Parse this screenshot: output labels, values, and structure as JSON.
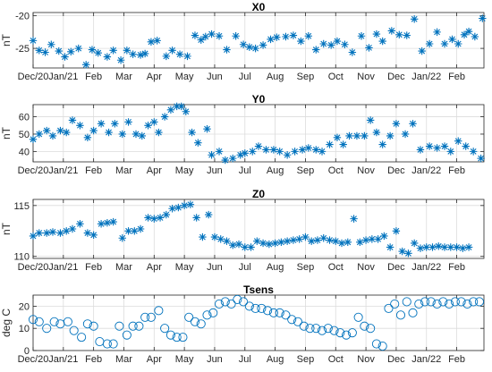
{
  "figure": {
    "x_tick_labels": [
      "Dec/20",
      "Jan/21",
      "Feb",
      "Mar",
      "Apr",
      "May",
      "Jun",
      "Jul",
      "Aug",
      "Sep",
      "Oct",
      "Nov",
      "Dec",
      "Jan/22",
      "Feb"
    ],
    "marker_color": "#0072BD"
  },
  "chart_data": [
    {
      "type": "scatter",
      "title": "X0",
      "ylabel": "nT",
      "marker": "asterisk",
      "ylim": [
        -28,
        -19.5
      ],
      "yticks": [
        -25,
        -20
      ],
      "x_unit": "months since start of Dec 2020",
      "x": [
        0.0,
        0.2,
        0.4,
        0.6,
        0.85,
        1.05,
        1.25,
        1.5,
        1.75,
        1.95,
        2.15,
        2.45,
        2.65,
        2.9,
        3.1,
        3.3,
        3.55,
        3.7,
        3.9,
        4.1,
        4.4,
        4.6,
        4.85,
        5.1,
        5.35,
        5.55,
        5.7,
        5.9,
        6.15,
        6.4,
        6.7,
        6.95,
        7.15,
        7.35,
        7.6,
        7.85,
        8.05,
        8.35,
        8.6,
        8.85,
        9.1,
        9.35,
        9.6,
        9.85,
        10.05,
        10.3,
        10.55,
        10.85,
        11.1,
        11.35,
        11.55,
        11.85,
        12.1,
        12.35,
        12.6,
        12.85,
        13.1,
        13.35,
        13.6,
        13.85,
        14.05,
        14.25,
        14.4,
        14.6,
        14.85
      ],
      "values": [
        -23.8,
        -25.3,
        -25.6,
        -24.4,
        -25.4,
        -26.3,
        -25.5,
        -25.0,
        -27.5,
        -25.2,
        -25.7,
        -26.3,
        -25.3,
        -26.8,
        -25.3,
        -25.9,
        -26.0,
        -25.8,
        -24.0,
        -23.8,
        -26.2,
        -25.3,
        -25.9,
        -26.2,
        -23.0,
        -23.7,
        -23.2,
        -22.8,
        -23.1,
        -25.2,
        -23.1,
        -24.4,
        -24.8,
        -25.0,
        -24.5,
        -23.6,
        -23.3,
        -23.2,
        -23.0,
        -23.9,
        -23.1,
        -25.2,
        -24.3,
        -24.5,
        -23.9,
        -24.4,
        -25.6,
        -23.1,
        -24.9,
        -22.8,
        -23.9,
        -22.3,
        -22.9,
        -23.0,
        -20.5,
        -25.4,
        -24.3,
        -22.5,
        -24.3,
        -23.6,
        -24.3,
        -22.9,
        -22.4,
        -23.2,
        -20.4
      ]
    },
    {
      "type": "scatter",
      "title": "Y0",
      "ylabel": "nT",
      "marker": "asterisk",
      "ylim": [
        34,
        67
      ],
      "yticks": [
        40,
        50,
        60
      ],
      "x_unit": "months since start of Dec 2020",
      "x": [
        0.0,
        0.2,
        0.45,
        0.65,
        0.9,
        1.1,
        1.3,
        1.55,
        1.8,
        2.0,
        2.25,
        2.5,
        2.7,
        2.95,
        3.15,
        3.4,
        3.6,
        3.8,
        4.0,
        4.15,
        4.35,
        4.55,
        4.75,
        4.9,
        5.05,
        5.25,
        5.45,
        5.75,
        5.9,
        6.15,
        6.35,
        6.6,
        6.85,
        7.0,
        7.25,
        7.45,
        7.7,
        7.95,
        8.15,
        8.4,
        8.65,
        8.9,
        9.1,
        9.35,
        9.55,
        9.8,
        10.05,
        10.25,
        10.45,
        10.7,
        10.95,
        11.15,
        11.35,
        11.55,
        11.8,
        12.0,
        12.3,
        12.55,
        12.8,
        13.1,
        13.35,
        13.6,
        13.8,
        14.05,
        14.3,
        14.55,
        14.8
      ],
      "values": [
        47,
        50,
        52,
        49,
        52,
        51,
        58,
        55,
        48,
        52,
        56,
        51,
        56,
        50,
        57,
        50,
        49,
        55,
        57,
        51,
        60,
        64,
        66,
        66,
        63,
        51,
        45,
        53,
        38,
        40,
        35,
        36,
        38,
        39,
        40,
        43,
        41,
        41,
        40,
        38,
        40,
        41,
        42,
        41,
        40,
        44,
        48,
        44,
        49,
        49,
        49,
        58,
        51,
        44,
        49,
        56,
        50,
        56,
        41,
        43,
        42,
        43,
        40,
        46,
        43,
        40,
        36
      ]
    },
    {
      "type": "scatter",
      "title": "Z0",
      "ylabel": "nT",
      "marker": "asterisk",
      "ylim": [
        109.8,
        115.6
      ],
      "yticks": [
        110,
        115
      ],
      "x_unit": "months since start of Dec 2020",
      "x": [
        0.0,
        0.2,
        0.45,
        0.65,
        0.9,
        1.1,
        1.3,
        1.55,
        1.8,
        2.0,
        2.25,
        2.45,
        2.65,
        2.95,
        3.15,
        3.35,
        3.55,
        3.8,
        4.0,
        4.2,
        4.4,
        4.6,
        4.8,
        5.0,
        5.2,
        5.4,
        5.6,
        5.8,
        6.0,
        6.2,
        6.4,
        6.6,
        6.8,
        7.0,
        7.2,
        7.4,
        7.6,
        7.8,
        8.0,
        8.2,
        8.4,
        8.6,
        8.8,
        9.0,
        9.2,
        9.4,
        9.6,
        9.8,
        10.0,
        10.2,
        10.4,
        10.6,
        10.8,
        11.0,
        11.2,
        11.4,
        11.6,
        11.8,
        12.0,
        12.2,
        12.4,
        12.6,
        12.8,
        13.0,
        13.2,
        13.4,
        13.6,
        13.8,
        14.0,
        14.2,
        14.4
      ],
      "values": [
        112.0,
        112.3,
        112.3,
        112.4,
        112.3,
        112.5,
        112.7,
        113.2,
        112.3,
        112.1,
        113.2,
        113.3,
        113.4,
        111.8,
        112.5,
        112.5,
        112.7,
        113.8,
        113.7,
        113.8,
        114.1,
        114.7,
        114.8,
        115.0,
        115.1,
        113.8,
        111.9,
        114.1,
        111.9,
        111.7,
        111.5,
        111.1,
        111.2,
        110.9,
        110.9,
        111.5,
        111.3,
        111.2,
        111.3,
        111.4,
        111.5,
        111.6,
        111.7,
        111.9,
        111.5,
        111.6,
        111.8,
        111.6,
        111.5,
        111.3,
        111.4,
        113.7,
        111.4,
        111.6,
        111.7,
        111.7,
        112.0,
        110.9,
        112.5,
        110.5,
        110.3,
        111.3,
        110.8,
        110.9,
        110.9,
        111.0,
        110.9,
        110.9,
        110.9,
        110.8,
        110.9
      ]
    },
    {
      "type": "scatter",
      "title": "Tsens",
      "ylabel": "deg C",
      "marker": "circle",
      "ylim": [
        0,
        25
      ],
      "yticks": [
        0,
        10,
        20
      ],
      "x_unit": "months since start of Dec 2020",
      "x": [
        0.0,
        0.2,
        0.45,
        0.7,
        0.9,
        1.15,
        1.35,
        1.6,
        1.8,
        2.0,
        2.2,
        2.45,
        2.65,
        2.85,
        3.1,
        3.3,
        3.5,
        3.7,
        3.9,
        4.15,
        4.35,
        4.55,
        4.75,
        4.95,
        5.15,
        5.35,
        5.55,
        5.75,
        5.95,
        6.15,
        6.35,
        6.55,
        6.75,
        6.95,
        7.15,
        7.35,
        7.55,
        7.75,
        7.95,
        8.15,
        8.35,
        8.55,
        8.75,
        8.95,
        9.15,
        9.35,
        9.55,
        9.75,
        9.95,
        10.15,
        10.35,
        10.55,
        10.75,
        10.95,
        11.15,
        11.35,
        11.55,
        11.75,
        11.95,
        12.15,
        12.35,
        12.55,
        12.75,
        12.95,
        13.15,
        13.35,
        13.55,
        13.75,
        13.95,
        14.15,
        14.35,
        14.55,
        14.75
      ],
      "values": [
        14,
        13,
        10,
        13,
        12,
        13,
        9,
        6,
        12,
        11,
        4,
        3,
        3,
        11,
        7,
        11,
        11,
        15,
        15,
        18,
        10,
        7,
        6,
        6,
        15,
        13,
        12,
        16,
        17,
        21,
        22,
        21,
        23,
        22,
        20,
        19,
        19,
        18,
        17,
        17,
        16,
        14,
        13,
        11,
        10,
        10,
        9,
        10,
        9,
        8,
        7,
        8,
        15,
        11,
        10,
        3,
        2,
        19,
        21,
        16,
        22,
        17,
        21,
        22,
        22,
        21,
        22,
        21,
        22,
        22,
        21,
        22,
        22
      ]
    }
  ]
}
